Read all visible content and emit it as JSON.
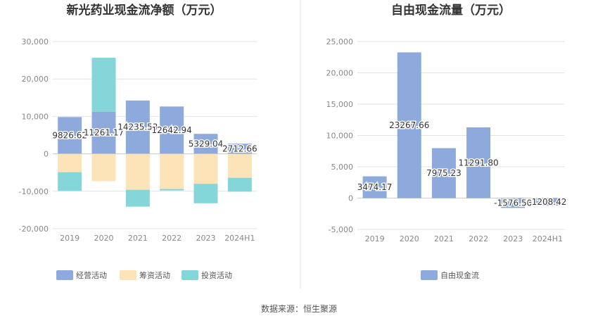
{
  "colors": {
    "operating": "#8eaadc",
    "financing": "#fde3b8",
    "investing": "#84d6d8",
    "fcf": "#8eaadc",
    "grid": "#e3e3e3",
    "divider": "#e6e6e6"
  },
  "source": "数据来源：恒生聚源",
  "chart_data": [
    {
      "type": "bar",
      "stacked": true,
      "title": "新光药业现金流净额（万元）",
      "categories": [
        "2019",
        "2020",
        "2021",
        "2022",
        "2023",
        "2024H1"
      ],
      "ylim": [
        -20000,
        30000
      ],
      "yticks": [
        30000,
        20000,
        10000,
        0,
        -10000,
        -20000
      ],
      "ytick_labels": [
        "30,000",
        "20,000",
        "10,000",
        "0",
        "-10,000",
        "-20,000"
      ],
      "grid": true,
      "legend_position": "bottom",
      "series": [
        {
          "name": "经营活动",
          "color_key": "operating",
          "values": [
            9826.62,
            11261.17,
            14235.53,
            12642.94,
            5329.04,
            2712.66
          ],
          "labels": [
            "9826.62",
            "11261.17",
            "14235.53",
            "12642.94",
            "5329.04",
            "2712.66"
          ]
        },
        {
          "name": "筹资活动",
          "color_key": "financing",
          "values": [
            -4900,
            -7300,
            -9600,
            -9400,
            -8000,
            -6400
          ]
        },
        {
          "name": "投资活动",
          "color_key": "investing",
          "values": [
            -5000,
            14400,
            -4500,
            -400,
            -5200,
            -3700
          ]
        }
      ]
    },
    {
      "type": "bar",
      "title": "自由现金流量（万元）",
      "categories": [
        "2019",
        "2020",
        "2021",
        "2022",
        "2023",
        "2024H1"
      ],
      "ylim": [
        -5000,
        25000
      ],
      "yticks": [
        25000,
        20000,
        15000,
        10000,
        5000,
        0,
        -5000
      ],
      "ytick_labels": [
        "25,000",
        "20,000",
        "15,000",
        "10,000",
        "5,000",
        "0",
        "-5,000"
      ],
      "grid": true,
      "legend_position": "bottom",
      "series": [
        {
          "name": "自由现金流",
          "color_key": "fcf",
          "values": [
            3474.17,
            23267.66,
            7975.23,
            11291.8,
            -1576.5,
            -1208.42
          ],
          "labels": [
            "3474.17",
            "23267.66",
            "7975.23",
            "11291.80",
            "-1576.50",
            "-1208.42"
          ]
        }
      ]
    }
  ]
}
